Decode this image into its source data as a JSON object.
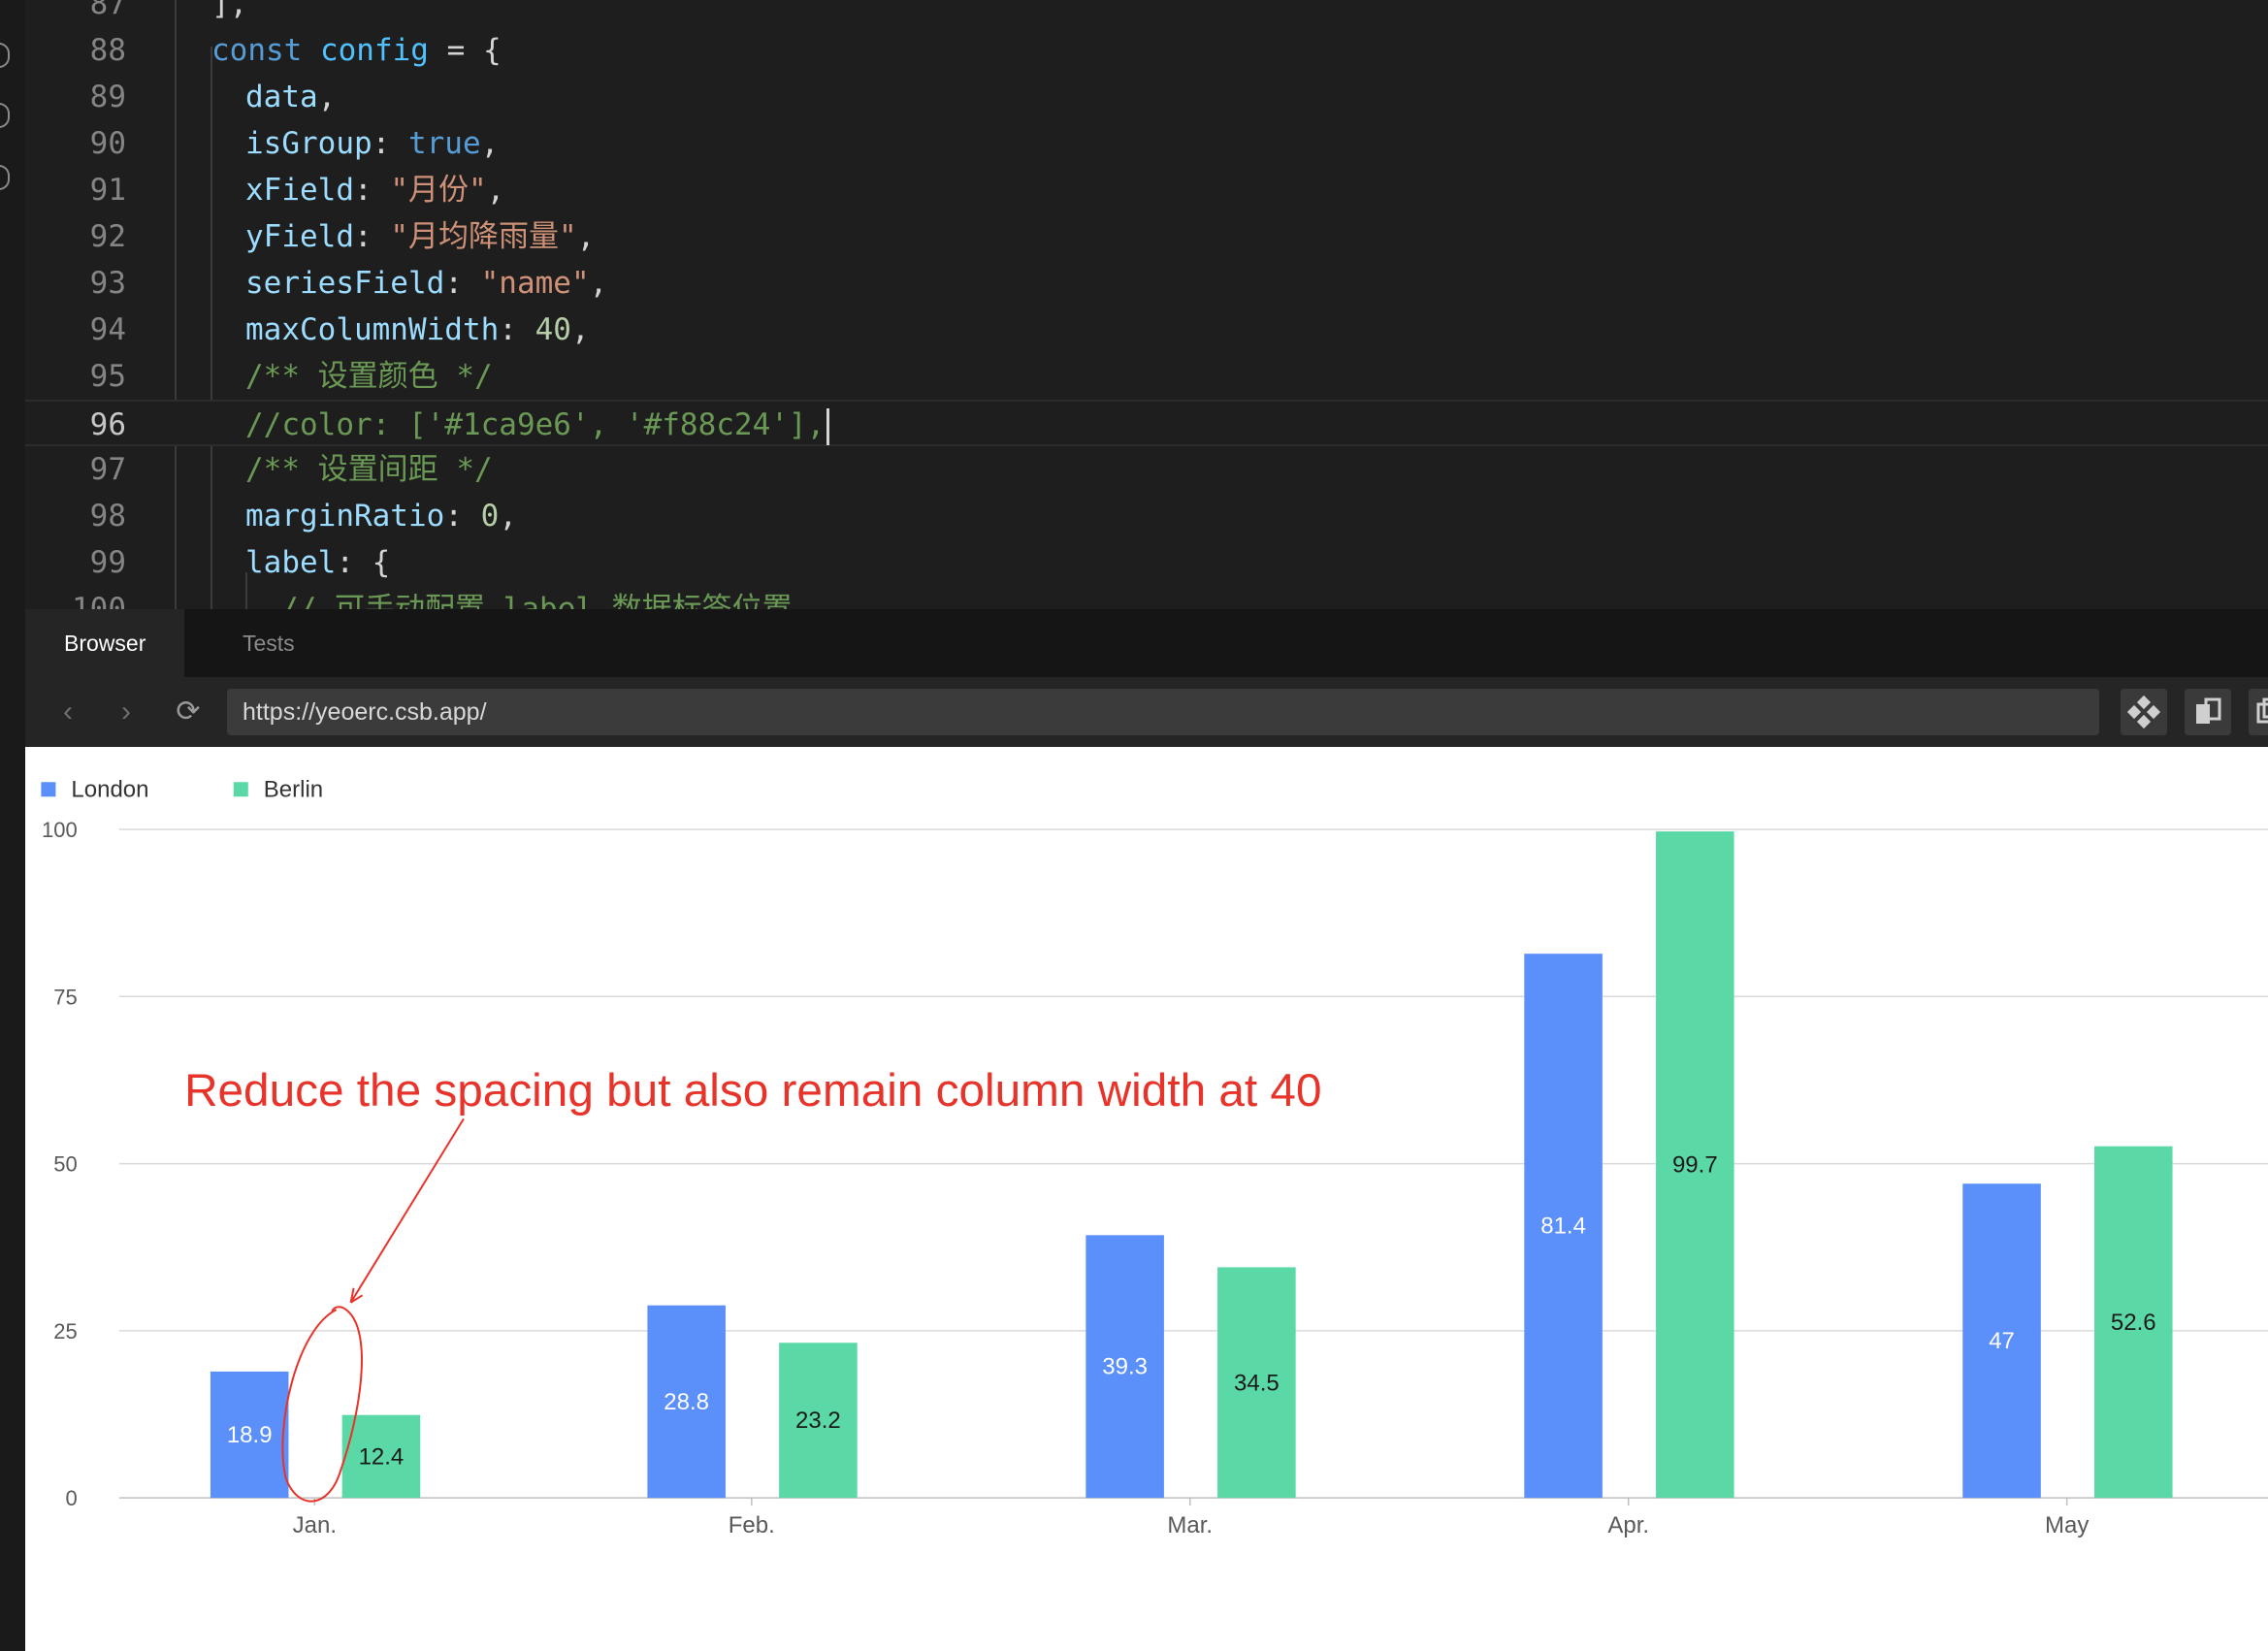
{
  "editor": {
    "lines": [
      {
        "n": "87",
        "tokens": [
          {
            "t": "],",
            "c": "pn"
          }
        ],
        "indent": 0
      },
      {
        "n": "88",
        "tokens": [
          {
            "t": "const ",
            "c": "kw"
          },
          {
            "t": "config",
            "c": "fn"
          },
          {
            "t": " = {",
            "c": "pn"
          }
        ],
        "indent": 0
      },
      {
        "n": "89",
        "tokens": [
          {
            "t": "data",
            "c": "var"
          },
          {
            "t": ",",
            "c": "pn"
          }
        ],
        "indent": 1
      },
      {
        "n": "90",
        "tokens": [
          {
            "t": "isGroup",
            "c": "var"
          },
          {
            "t": ": ",
            "c": "pn"
          },
          {
            "t": "true",
            "c": "kw"
          },
          {
            "t": ",",
            "c": "pn"
          }
        ],
        "indent": 1
      },
      {
        "n": "91",
        "tokens": [
          {
            "t": "xField",
            "c": "var"
          },
          {
            "t": ": ",
            "c": "pn"
          },
          {
            "t": "\"月份\"",
            "c": "str"
          },
          {
            "t": ",",
            "c": "pn"
          }
        ],
        "indent": 1
      },
      {
        "n": "92",
        "tokens": [
          {
            "t": "yField",
            "c": "var"
          },
          {
            "t": ": ",
            "c": "pn"
          },
          {
            "t": "\"月均降雨量\"",
            "c": "str"
          },
          {
            "t": ",",
            "c": "pn"
          }
        ],
        "indent": 1
      },
      {
        "n": "93",
        "tokens": [
          {
            "t": "seriesField",
            "c": "var"
          },
          {
            "t": ": ",
            "c": "pn"
          },
          {
            "t": "\"name\"",
            "c": "str"
          },
          {
            "t": ",",
            "c": "pn"
          }
        ],
        "indent": 1
      },
      {
        "n": "94",
        "tokens": [
          {
            "t": "maxColumnWidth",
            "c": "var"
          },
          {
            "t": ": ",
            "c": "pn"
          },
          {
            "t": "40",
            "c": "num"
          },
          {
            "t": ",",
            "c": "pn"
          }
        ],
        "indent": 1
      },
      {
        "n": "95",
        "tokens": [
          {
            "t": "/** 设置颜色 */",
            "c": "cm"
          }
        ],
        "indent": 1
      },
      {
        "n": "96",
        "tokens": [
          {
            "t": "//color: ['#1ca9e6', '#f88c24'],",
            "c": "cm"
          }
        ],
        "indent": 1,
        "current": true
      },
      {
        "n": "97",
        "tokens": [
          {
            "t": "/** 设置间距 */",
            "c": "cm"
          }
        ],
        "indent": 1
      },
      {
        "n": "98",
        "tokens": [
          {
            "t": "marginRatio",
            "c": "var"
          },
          {
            "t": ": ",
            "c": "pn"
          },
          {
            "t": "0",
            "c": "num"
          },
          {
            "t": ",",
            "c": "pn"
          }
        ],
        "indent": 1
      },
      {
        "n": "99",
        "tokens": [
          {
            "t": "label",
            "c": "var"
          },
          {
            "t": ": {",
            "c": "pn"
          }
        ],
        "indent": 1
      },
      {
        "n": "100",
        "tokens": [
          {
            "t": "// 可手动配置 label 数据标签位置",
            "c": "cm"
          }
        ],
        "indent": 2
      }
    ]
  },
  "tabs": {
    "browser": "Browser",
    "tests": "Tests"
  },
  "nav": {
    "url": "https://yeoerc.csb.app/",
    "back_icon": "‹",
    "forward_icon": "›",
    "reload_icon": "⟳"
  },
  "annotation": {
    "text": "Reduce the spacing but also remain column width at 40",
    "color": "#e8332a"
  },
  "chart_data": {
    "type": "bar",
    "categories": [
      "Jan.",
      "Feb.",
      "Mar.",
      "Apr.",
      "May"
    ],
    "series": [
      {
        "name": "London",
        "color": "#5b8ff9",
        "values": [
          18.9,
          28.8,
          39.3,
          81.4,
          47
        ],
        "labels": [
          "18.9",
          "28.8",
          "39.3",
          "81.4",
          "47"
        ]
      },
      {
        "name": "Berlin",
        "color": "#5ad8a6",
        "values": [
          12.4,
          23.2,
          34.5,
          99.7,
          52.6
        ],
        "labels": [
          "12.4",
          "23.2",
          "34.5",
          "99.7",
          "52.6"
        ]
      }
    ],
    "yticks": [
      "0",
      "25",
      "50",
      "75",
      "100"
    ],
    "ylim": [
      0,
      100
    ],
    "grid": true,
    "legend": "top-left"
  }
}
